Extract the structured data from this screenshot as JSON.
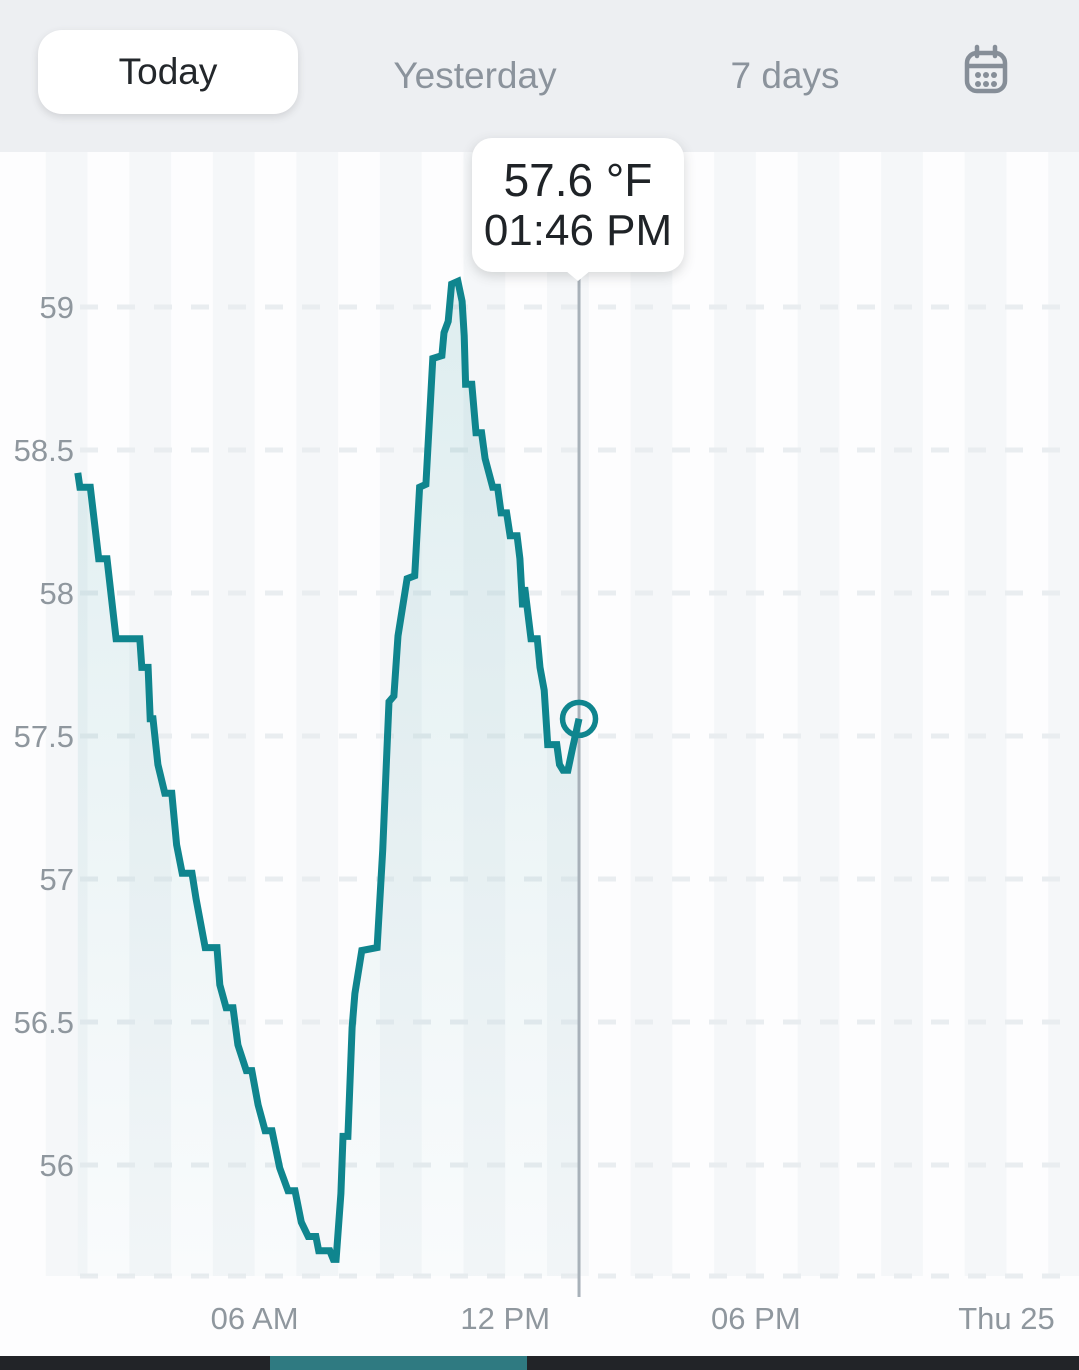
{
  "header": {
    "tabs": [
      {
        "label": "Today",
        "active": true
      },
      {
        "label": "Yesterday",
        "active": false
      },
      {
        "label": "7 days",
        "active": false
      }
    ],
    "calendar_icon": "calendar-icon"
  },
  "tooltip": {
    "temperature": "57.6 °F",
    "time": "01:46 PM"
  },
  "chart_data": {
    "type": "line",
    "style": "step",
    "title": "Temperature today",
    "unit": "°F",
    "xlabel": "time of day",
    "ylabel": "temperature (°F)",
    "ylim": [
      55.6,
      59.5
    ],
    "xlim_minutes": [
      0,
      1545
    ],
    "grid": "dashed-horizontal",
    "legend": "none",
    "yticks": [
      59,
      58.5,
      58,
      57.5,
      57,
      56.5,
      56
    ],
    "xticks": [
      {
        "minutes": 360,
        "label": "06 AM"
      },
      {
        "minutes": 720,
        "label": "12 PM"
      },
      {
        "minutes": 1080,
        "label": "06 PM"
      },
      {
        "minutes": 1440,
        "label": "Thu 25"
      }
    ],
    "selected_point": {
      "minutes": 826,
      "value": 57.56,
      "temperature_label": "57.6 °F",
      "time_label": "01:46 PM"
    },
    "series": [
      {
        "name": "temperature_f",
        "points": [
          [
            106,
            58.42
          ],
          [
            109,
            58.37
          ],
          [
            124,
            58.37
          ],
          [
            136,
            58.12
          ],
          [
            148,
            58.12
          ],
          [
            161,
            57.84
          ],
          [
            195,
            57.84
          ],
          [
            198,
            57.74
          ],
          [
            207,
            57.74
          ],
          [
            210,
            57.56
          ],
          [
            214,
            57.56
          ],
          [
            221,
            57.4
          ],
          [
            231,
            57.3
          ],
          [
            241,
            57.3
          ],
          [
            248,
            57.12
          ],
          [
            256,
            57.02
          ],
          [
            270,
            57.02
          ],
          [
            276,
            56.93
          ],
          [
            289,
            56.76
          ],
          [
            306,
            56.76
          ],
          [
            310,
            56.63
          ],
          [
            319,
            56.55
          ],
          [
            329,
            56.55
          ],
          [
            336,
            56.42
          ],
          [
            348,
            56.33
          ],
          [
            356,
            56.33
          ],
          [
            365,
            56.21
          ],
          [
            375,
            56.12
          ],
          [
            385,
            56.12
          ],
          [
            396,
            55.99
          ],
          [
            408,
            55.91
          ],
          [
            418,
            55.91
          ],
          [
            427,
            55.8
          ],
          [
            437,
            55.75
          ],
          [
            448,
            55.75
          ],
          [
            452,
            55.7
          ],
          [
            468,
            55.7
          ],
          [
            473,
            55.67
          ],
          [
            477,
            55.67
          ],
          [
            484,
            55.9
          ],
          [
            487,
            56.1
          ],
          [
            494,
            56.1
          ],
          [
            500,
            56.48
          ],
          [
            504,
            56.6
          ],
          [
            514,
            56.75
          ],
          [
            536,
            56.76
          ],
          [
            544,
            57.1
          ],
          [
            550,
            57.45
          ],
          [
            553,
            57.62
          ],
          [
            560,
            57.64
          ],
          [
            566,
            57.85
          ],
          [
            579,
            58.05
          ],
          [
            590,
            58.06
          ],
          [
            597,
            58.37
          ],
          [
            606,
            58.38
          ],
          [
            616,
            58.82
          ],
          [
            629,
            58.83
          ],
          [
            632,
            58.91
          ],
          [
            638,
            58.95
          ],
          [
            643,
            59.08
          ],
          [
            652,
            59.09
          ],
          [
            658,
            59.02
          ],
          [
            661,
            58.9
          ],
          [
            663,
            58.73
          ],
          [
            672,
            58.73
          ],
          [
            678,
            58.56
          ],
          [
            686,
            58.56
          ],
          [
            691,
            58.47
          ],
          [
            702,
            58.37
          ],
          [
            709,
            58.37
          ],
          [
            714,
            58.28
          ],
          [
            722,
            58.28
          ],
          [
            727,
            58.2
          ],
          [
            737,
            58.2
          ],
          [
            741,
            58.12
          ],
          [
            745,
            57.95
          ],
          [
            748,
            58.02
          ],
          [
            753,
            57.92
          ],
          [
            757,
            57.84
          ],
          [
            766,
            57.84
          ],
          [
            770,
            57.74
          ],
          [
            776,
            57.66
          ],
          [
            781,
            57.47
          ],
          [
            794,
            57.47
          ],
          [
            798,
            57.4
          ],
          [
            803,
            57.38
          ],
          [
            810,
            57.38
          ],
          [
            816,
            57.45
          ],
          [
            826,
            57.56
          ]
        ]
      }
    ],
    "colors": {
      "line": "#0f858e",
      "fill_top": "rgba(15,133,142,0.13)",
      "fill_bottom": "rgba(15,133,142,0.015)",
      "crosshair": "#a8b1b9",
      "grid": "#e9edf0",
      "stripe": "#f5f7f9",
      "axis_text": "#8f979e"
    }
  },
  "bottom_bar": {
    "background": "#222428",
    "accent": "#2f7a81"
  }
}
